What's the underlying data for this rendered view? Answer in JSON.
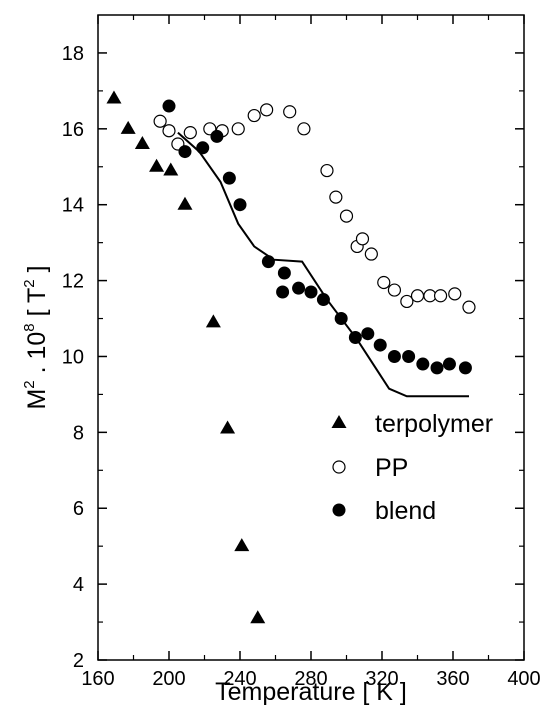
{
  "chart_data": {
    "type": "scatter",
    "title": "",
    "xlabel": "Temperature [ K ]",
    "ylabel": {
      "base": "M",
      "base_sup": "2",
      "mid": " . 10",
      "mid_sup": "8",
      "unit_open": " [ T",
      "unit_sup": "2",
      "unit_close": " ]"
    },
    "xlim": [
      160,
      400
    ],
    "ylim": [
      2,
      19
    ],
    "x_ticks": [
      160,
      200,
      240,
      280,
      320,
      360,
      400
    ],
    "y_ticks": [
      2,
      4,
      6,
      8,
      10,
      12,
      14,
      16,
      18
    ],
    "grid": false,
    "legend_position": "lower-right",
    "series": [
      {
        "name": "terpolymer",
        "marker": "filled-triangle",
        "points": [
          [
            169,
            16.8
          ],
          [
            177,
            16.0
          ],
          [
            185,
            15.6
          ],
          [
            193,
            15.0
          ],
          [
            201,
            14.9
          ],
          [
            209,
            14.0
          ],
          [
            225,
            10.9
          ],
          [
            233,
            8.1
          ],
          [
            241,
            5.0
          ],
          [
            250,
            3.1
          ]
        ]
      },
      {
        "name": "PP",
        "marker": "open-circle",
        "points": [
          [
            195,
            16.2
          ],
          [
            200,
            15.95
          ],
          [
            205,
            15.6
          ],
          [
            212,
            15.9
          ],
          [
            223,
            16.0
          ],
          [
            230,
            15.95
          ],
          [
            239,
            16.0
          ],
          [
            248,
            16.35
          ],
          [
            255,
            16.5
          ],
          [
            268,
            16.45
          ],
          [
            276,
            16.0
          ],
          [
            289,
            14.9
          ],
          [
            294,
            14.2
          ],
          [
            300,
            13.7
          ],
          [
            306,
            12.9
          ],
          [
            309,
            13.1
          ],
          [
            314,
            12.7
          ],
          [
            321,
            11.95
          ],
          [
            327,
            11.75
          ],
          [
            334,
            11.45
          ],
          [
            340,
            11.6
          ],
          [
            347,
            11.6
          ],
          [
            353,
            11.6
          ],
          [
            361,
            11.65
          ],
          [
            369,
            11.3
          ]
        ]
      },
      {
        "name": "blend",
        "marker": "filled-circle",
        "points": [
          [
            200,
            16.6
          ],
          [
            209,
            15.4
          ],
          [
            219,
            15.5
          ],
          [
            227,
            15.8
          ],
          [
            234,
            14.7
          ],
          [
            240,
            14.0
          ],
          [
            256,
            12.5
          ],
          [
            264,
            11.7
          ],
          [
            265,
            12.2
          ],
          [
            273,
            11.8
          ],
          [
            280,
            11.7
          ],
          [
            287,
            11.5
          ],
          [
            297,
            11.0
          ],
          [
            305,
            10.5
          ],
          [
            312,
            10.6
          ],
          [
            319,
            10.3
          ],
          [
            327,
            10.0
          ],
          [
            335,
            10.0
          ],
          [
            343,
            9.8
          ],
          [
            351,
            9.7
          ],
          [
            358,
            9.8
          ],
          [
            367,
            9.7
          ]
        ]
      }
    ],
    "fit_line": {
      "points": [
        [
          205,
          15.9
        ],
        [
          217,
          15.4
        ],
        [
          229,
          14.6
        ],
        [
          239,
          13.5
        ],
        [
          248,
          12.9
        ],
        [
          259,
          12.55
        ],
        [
          275,
          12.5
        ],
        [
          289,
          11.5
        ],
        [
          306,
          10.45
        ],
        [
          324,
          9.15
        ],
        [
          334,
          8.95
        ],
        [
          369,
          8.95
        ]
      ]
    },
    "colors": {
      "ink": "#000000",
      "background": "#ffffff"
    }
  }
}
